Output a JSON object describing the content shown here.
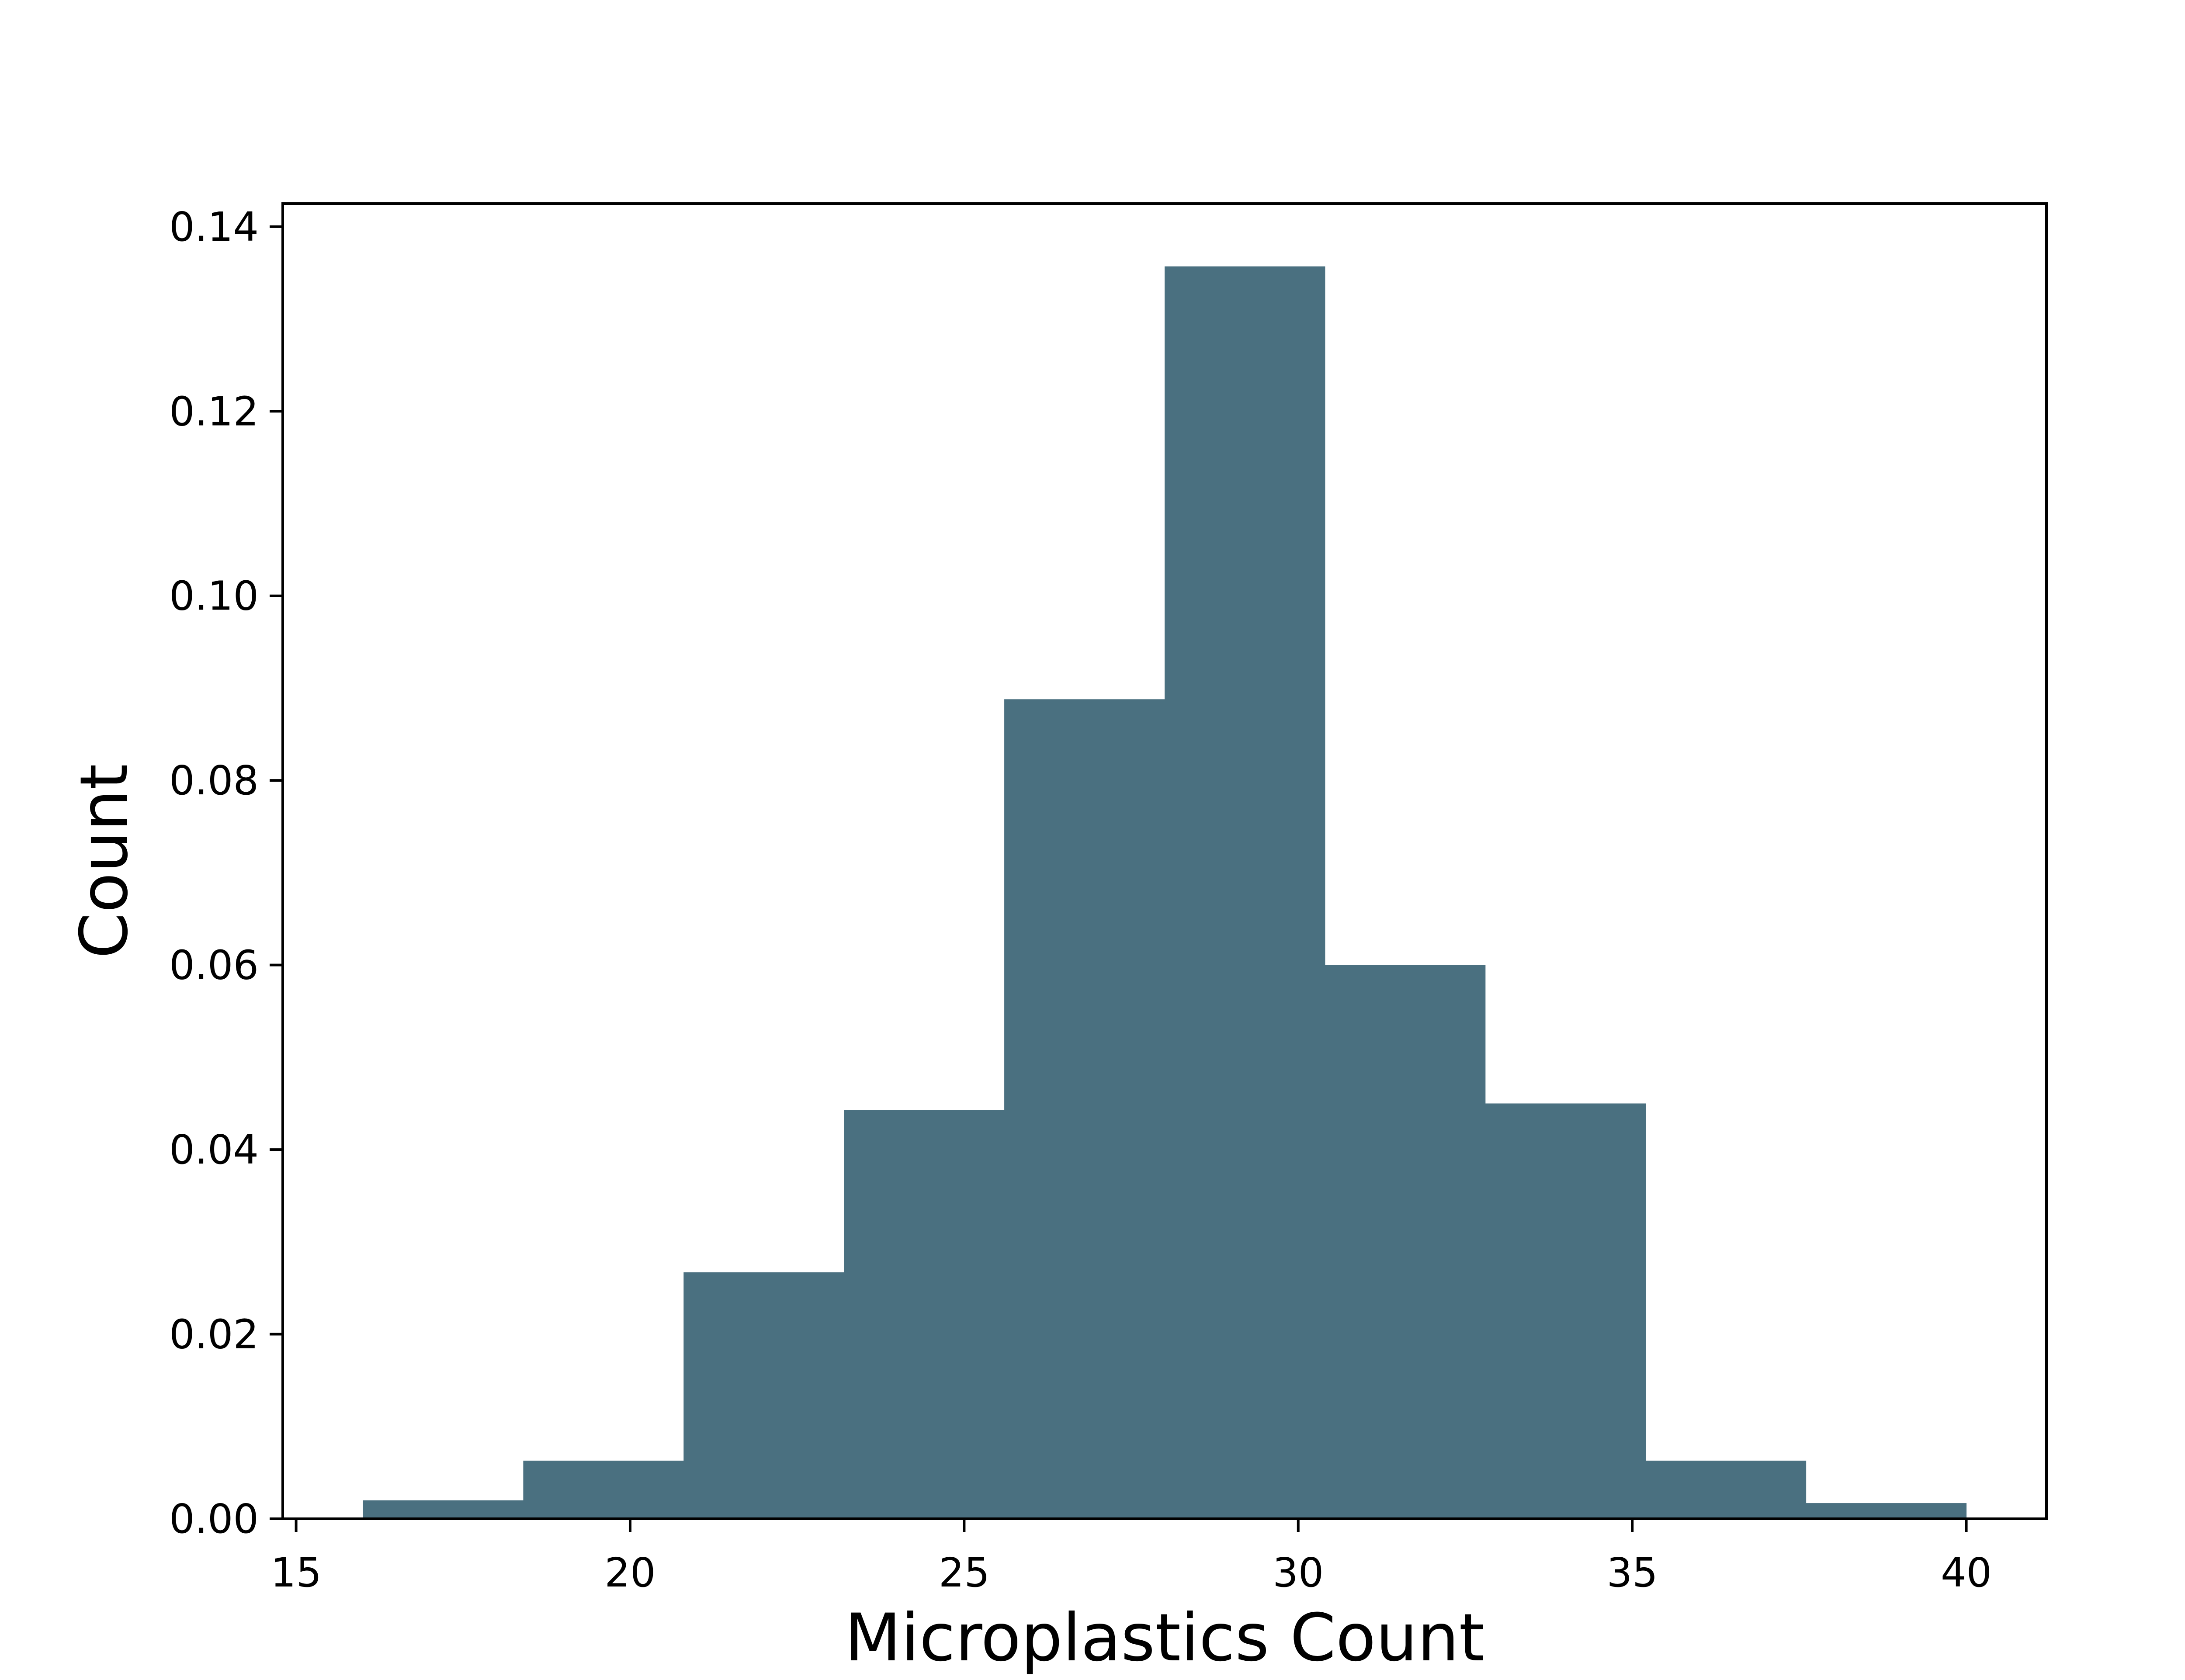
{
  "chart_data": {
    "type": "bar",
    "histogram": true,
    "bin_edges": [
      16.0,
      18.4,
      20.8,
      23.2,
      25.6,
      28.0,
      30.4,
      32.8,
      35.2,
      37.6,
      40.0
    ],
    "values": [
      0.002,
      0.0063,
      0.0267,
      0.0443,
      0.0888,
      0.1357,
      0.06,
      0.045,
      0.0063,
      0.0017
    ],
    "title": "",
    "xlabel": "Microplastics Count",
    "ylabel": "Count",
    "xlim": [
      14.8,
      41.2
    ],
    "ylim": [
      0.0,
      0.1425
    ],
    "xticks": [
      15,
      20,
      25,
      30,
      35,
      40
    ],
    "yticks": [
      0.0,
      0.02,
      0.04,
      0.06,
      0.08,
      0.1,
      0.12,
      0.14
    ],
    "xtick_labels": [
      "15",
      "20",
      "25",
      "30",
      "35",
      "40"
    ],
    "ytick_labels": [
      "0.00",
      "0.02",
      "0.04",
      "0.06",
      "0.08",
      "0.10",
      "0.12",
      "0.14"
    ],
    "bar_color": "#4a7080",
    "grid": false,
    "legend": "none"
  }
}
